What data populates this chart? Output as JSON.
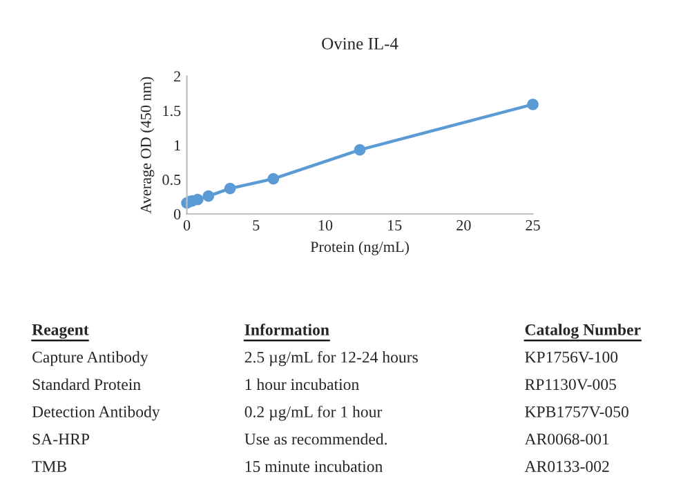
{
  "chart_data": {
    "type": "line",
    "title": "Ovine IL-4",
    "xlabel": "Protein (ng/mL)",
    "ylabel": "Average OD (450 nm)",
    "x": [
      0,
      0.195,
      0.39,
      0.78,
      1.56,
      3.125,
      6.25,
      12.5,
      25
    ],
    "series": [
      {
        "color": "#5b9bd5",
        "values": [
          0.16,
          0.18,
          0.19,
          0.21,
          0.26,
          0.37,
          0.51,
          0.93,
          1.59
        ]
      }
    ],
    "xlim": [
      0,
      25
    ],
    "xticks": [
      0,
      5,
      10,
      15,
      20,
      25
    ],
    "ylim": [
      0,
      2
    ],
    "yticks": [
      0,
      0.5,
      1,
      1.5,
      2
    ],
    "marker": "circle",
    "line_style": "solid",
    "annotations": [
      "Reagent",
      "Information",
      "Catalog Number",
      "Capture Antibody",
      "2.5 µg/mL for 12-24 hours",
      "KP1756V-100",
      "Standard Protein",
      "1 hour incubation",
      "RP1130V-005",
      "Detection Antibody",
      "0.2 µg/mL for 1 hour",
      "KPB1757V-050",
      "SA-HRP",
      "Use as recommended.",
      "AR0068-001",
      "TMB",
      "15 minute incubation",
      "AR0133-002"
    ]
  }
}
